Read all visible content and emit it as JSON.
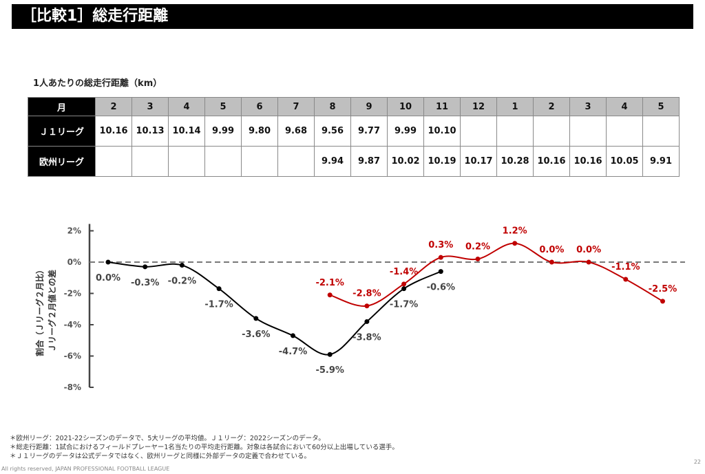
{
  "title": "［比較1］総走行距離",
  "subtitle": "1人あたりの総走行距離（km）",
  "table": {
    "header_label": "月",
    "months": [
      "2",
      "3",
      "4",
      "5",
      "6",
      "7",
      "8",
      "9",
      "10",
      "11",
      "12",
      "1",
      "2",
      "3",
      "4",
      "5"
    ],
    "rows": [
      {
        "label": "Ｊ１リーグ",
        "values": [
          "10.16",
          "10.13",
          "10.14",
          "9.99",
          "9.80",
          "9.68",
          "9.56",
          "9.77",
          "9.99",
          "10.10",
          "",
          "",
          "",
          "",
          "",
          ""
        ]
      },
      {
        "label": "欧州リーグ",
        "values": [
          "",
          "",
          "",
          "",
          "",
          "",
          "9.94",
          "9.87",
          "10.02",
          "10.19",
          "10.17",
          "10.28",
          "10.16",
          "10.16",
          "10.05",
          "9.91"
        ]
      }
    ]
  },
  "chart_data": {
    "type": "line",
    "ylabel_line1": "割合（Ｊリーグ２月比）",
    "ylabel_line2": "Ｊリーグ２月値との差",
    "ylim": [
      -8,
      2
    ],
    "yticks": [
      "2%",
      "0%",
      "-2%",
      "-4%",
      "-6%",
      "-8%"
    ],
    "ytick_values": [
      2,
      0,
      -2,
      -4,
      -6,
      -8
    ],
    "reference_line": 0,
    "series": [
      {
        "name": "Ｊ１リーグ",
        "color": "#000000",
        "start_index": 0,
        "values": [
          0.0,
          -0.3,
          -0.2,
          -1.7,
          -3.6,
          -4.7,
          -5.9,
          -3.8,
          -1.7,
          -0.6
        ],
        "labels": [
          "0.0%",
          "-0.3%",
          "-0.2%",
          "-1.7%",
          "-3.6%",
          "-4.7%",
          "-5.9%",
          "-3.8%",
          "-1.7%",
          "-0.6%"
        ]
      },
      {
        "name": "欧州リーグ",
        "color": "#c00000",
        "start_index": 6,
        "values": [
          -2.1,
          -2.8,
          -1.4,
          0.3,
          0.2,
          1.2,
          0.0,
          0.0,
          -1.1,
          -2.5
        ],
        "labels": [
          "-2.1%",
          "-2.8%",
          "-1.4%",
          "0.3%",
          "0.2%",
          "1.2%",
          "0.0%",
          "0.0%",
          "-1.1%",
          "-2.5%"
        ]
      }
    ]
  },
  "footnotes": [
    "＊欧州リーグ：2021-22シーズンのデータで、5大リーグの平均値。Ｊ１リーグ：2022シーズンのデータ。",
    "＊総走行距離：1試合におけるフィールドプレーヤー1名当たりの平均走行距離。対象は各試合において60分以上出場している選手。",
    "＊Ｊ１リーグのデータは公式データではなく、欧州リーグと同様に外部データの定義で合わせている。"
  ],
  "copyright": "All rights reserved, JAPAN PROFESSIONAL FOOTBALL LEAGUE",
  "page_number": "22"
}
